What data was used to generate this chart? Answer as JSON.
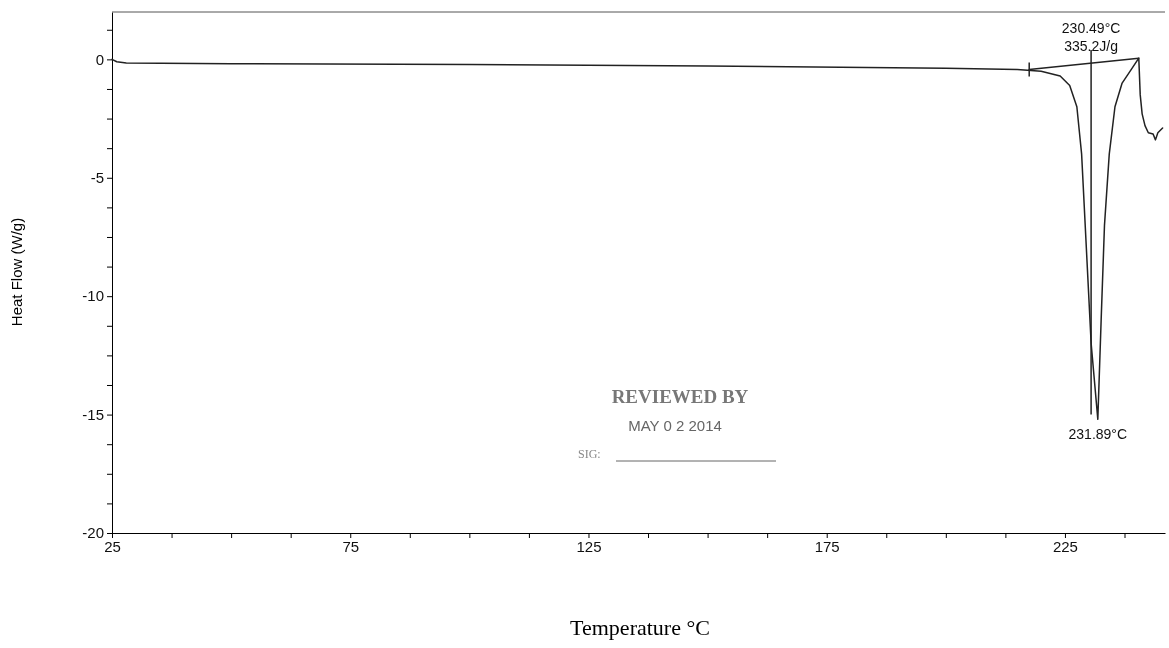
{
  "chart_data": {
    "type": "line",
    "xlabel": "Temperature °C",
    "ylabel": "Heat Flow (W/g)",
    "xlim": [
      25,
      246
    ],
    "ylim": [
      -20,
      2
    ],
    "xticks": [
      25,
      {
        "value": 37.5,
        "label": null
      },
      {
        "value": 50,
        "label": null
      },
      {
        "value": 62.5,
        "label": null
      },
      75,
      {
        "value": 87.5,
        "label": null
      },
      {
        "value": 100,
        "label": null
      },
      {
        "value": 112.5,
        "label": null
      },
      125,
      {
        "value": 137.5,
        "label": null
      },
      {
        "value": 150,
        "label": null
      },
      {
        "value": 162.5,
        "label": null
      },
      175,
      {
        "value": 187.5,
        "label": null
      },
      {
        "value": 200,
        "label": null
      },
      {
        "value": 212.5,
        "label": null
      },
      225,
      {
        "value": 237.5,
        "label": null
      }
    ],
    "yticks": [
      -20,
      {
        "value": -18.75,
        "label": null
      },
      {
        "value": -17.5,
        "label": null
      },
      {
        "value": -16.25,
        "label": null
      },
      -15,
      {
        "value": -13.75,
        "label": null
      },
      {
        "value": -12.5,
        "label": null
      },
      {
        "value": -11.25,
        "label": null
      },
      -10,
      {
        "value": -8.75,
        "label": null
      },
      {
        "value": -7.5,
        "label": null
      },
      {
        "value": -6.25,
        "label": null
      },
      -5,
      {
        "value": -3.75,
        "label": null
      },
      {
        "value": -2.5,
        "label": null
      },
      {
        "value": -1.25,
        "label": null
      },
      0,
      {
        "value": 1.25,
        "label": null
      }
    ],
    "series": [
      {
        "color": "#222222",
        "x": [
          25,
          26,
          28,
          50,
          100,
          150,
          200,
          215,
          220,
          224,
          226,
          227.5,
          228.5,
          229.5,
          230.5,
          231.9,
          232.6,
          233.3,
          234.3,
          235.5,
          237,
          239,
          240.5,
          240.8,
          241.2,
          241.8,
          242.5,
          243.5,
          244,
          244.5,
          245.5
        ],
        "values": [
          0,
          -0.1,
          -0.15,
          -0.18,
          -0.22,
          -0.28,
          -0.38,
          -0.43,
          -0.5,
          -0.7,
          -1.1,
          -2,
          -4,
          -8,
          -12,
          -15.2,
          -11,
          -7,
          -4,
          -2,
          -1,
          -0.4,
          0.05,
          -1.5,
          -2.3,
          -2.8,
          -3.1,
          -3.15,
          -3.4,
          -3.1,
          -2.9
        ]
      },
      {
        "color": "#222222",
        "x": [
          217.5,
          240.5
        ],
        "values": [
          -0.43,
          0.05
        ]
      }
    ],
    "ref_lines": [
      {
        "axis": "x",
        "value": 230.49,
        "label": "230.49°C",
        "color": "#222222"
      }
    ],
    "annotations": [
      "335.2J/g",
      "231.89°C",
      "REVIEWED BY",
      "MAY 0 2 2014",
      "SIG:"
    ]
  }
}
